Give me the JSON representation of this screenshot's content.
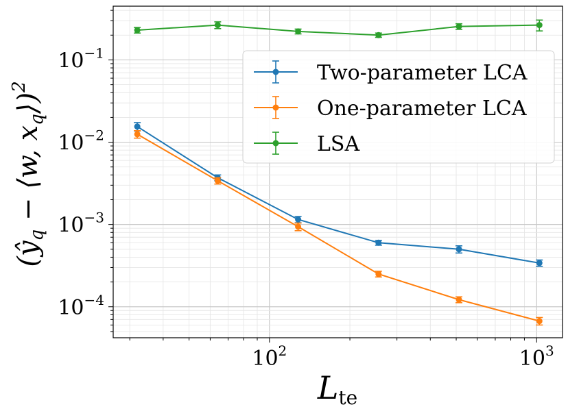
{
  "chart_data": {
    "type": "line",
    "xscale": "log",
    "yscale": "log",
    "xlim": [
      26,
      1250
    ],
    "ylim": [
      4.2e-05,
      0.45
    ],
    "grid": true,
    "legend_position": "upper-right",
    "xlabel": {
      "base": "L",
      "sub": "te"
    },
    "ylabel": {
      "text": "(ŷ",
      "sub_q": "q",
      "mid": " − ⟨w, x",
      "sub_q2": "q",
      "end": "⟩)",
      "sup": "2"
    },
    "x": [
      32,
      64,
      128,
      256,
      512,
      1024
    ],
    "x_ticks": [
      {
        "value": 100,
        "base": "10",
        "exp": "2"
      },
      {
        "value": 1000,
        "base": "10",
        "exp": "3"
      }
    ],
    "y_ticks": [
      {
        "value": 0.1,
        "base": "10",
        "exp": "−1"
      },
      {
        "value": 0.01,
        "base": "10",
        "exp": "−2"
      },
      {
        "value": 0.001,
        "base": "10",
        "exp": "−3"
      },
      {
        "value": 0.0001,
        "base": "10",
        "exp": "−4"
      }
    ],
    "series": [
      {
        "name": "Two-parameter LCA",
        "color": "#1f77b4",
        "values": [
          0.0155,
          0.0037,
          0.00115,
          0.0006,
          0.0005,
          0.00034
        ],
        "errors": [
          0.0018,
          0.0003,
          0.0001,
          4e-05,
          5e-05,
          3e-05
        ]
      },
      {
        "name": "One-parameter LCA",
        "color": "#ff7f0e",
        "values": [
          0.0125,
          0.0034,
          0.00094,
          0.00025,
          0.000122,
          6.7e-05
        ],
        "errors": [
          0.0013,
          0.0003,
          0.0001,
          2e-05,
          1e-05,
          7e-06
        ]
      },
      {
        "name": "LSA",
        "color": "#2ca02c",
        "values": [
          0.23,
          0.265,
          0.222,
          0.2,
          0.255,
          0.265
        ],
        "errors": [
          0.018,
          0.025,
          0.015,
          0.012,
          0.02,
          0.04
        ]
      }
    ]
  }
}
